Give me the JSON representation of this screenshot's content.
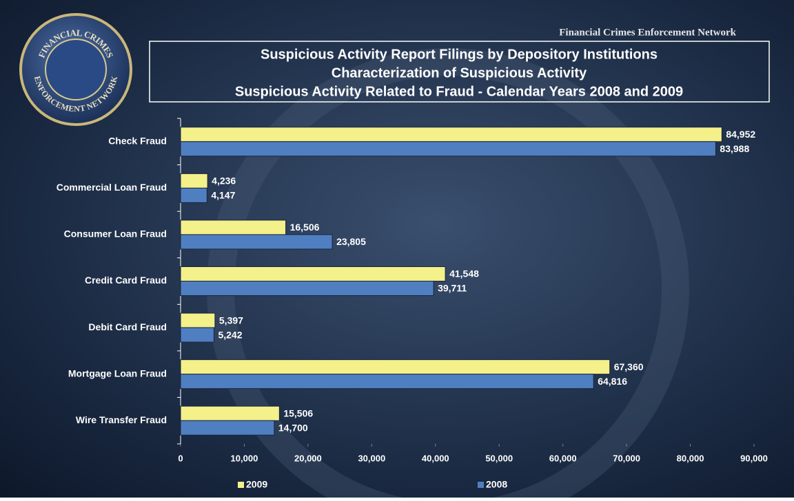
{
  "header": "Financial Crimes Enforcement Network",
  "logo": {
    "top": "FINANCIAL CRIMES",
    "bottom": "ENFORCEMENT NETWORK"
  },
  "chart_data": {
    "type": "bar",
    "orientation": "horizontal",
    "title": [
      "Suspicious Activity Report Filings by Depository Institutions",
      "Characterization of Suspicious Activity",
      "Suspicious Activity Related to Fraud - Calendar Years 2008 and 2009"
    ],
    "categories": [
      "Check Fraud",
      "Commercial Loan Fraud",
      "Consumer Loan Fraud",
      "Credit Card Fraud",
      "Debit Card Fraud",
      "Mortgage Loan Fraud",
      "Wire Transfer Fraud"
    ],
    "series": [
      {
        "name": "2009",
        "color": "#f4f08a",
        "values": [
          84952,
          4236,
          16506,
          41548,
          5397,
          67360,
          15506
        ],
        "value_labels": [
          "84,952",
          "4,236",
          "16,506",
          "41,548",
          "5,397",
          "67,360",
          "15,506"
        ]
      },
      {
        "name": "2008",
        "color": "#4f7fc0",
        "values": [
          83988,
          4147,
          23805,
          39711,
          5242,
          64816,
          14700
        ],
        "value_labels": [
          "83,988",
          "4,147",
          "23,805",
          "39,711",
          "5,242",
          "64,816",
          "14,700"
        ]
      }
    ],
    "xlim": [
      0,
      90000
    ],
    "xticks": [
      0,
      {
        "value": 10000,
        "label": "10,000"
      },
      {
        "value": 20000,
        "label": "20,000"
      },
      {
        "value": 30000,
        "label": "30,000"
      },
      {
        "value": 40000,
        "label": "40,000"
      },
      {
        "value": 50000,
        "label": "50,000"
      },
      {
        "value": 60000,
        "label": "60,000"
      },
      {
        "value": 70000,
        "label": "70,000"
      },
      {
        "value": 80000,
        "label": "80,000"
      },
      {
        "value": 90000,
        "label": "90,000"
      }
    ],
    "legend": "bottom",
    "grid": false
  }
}
